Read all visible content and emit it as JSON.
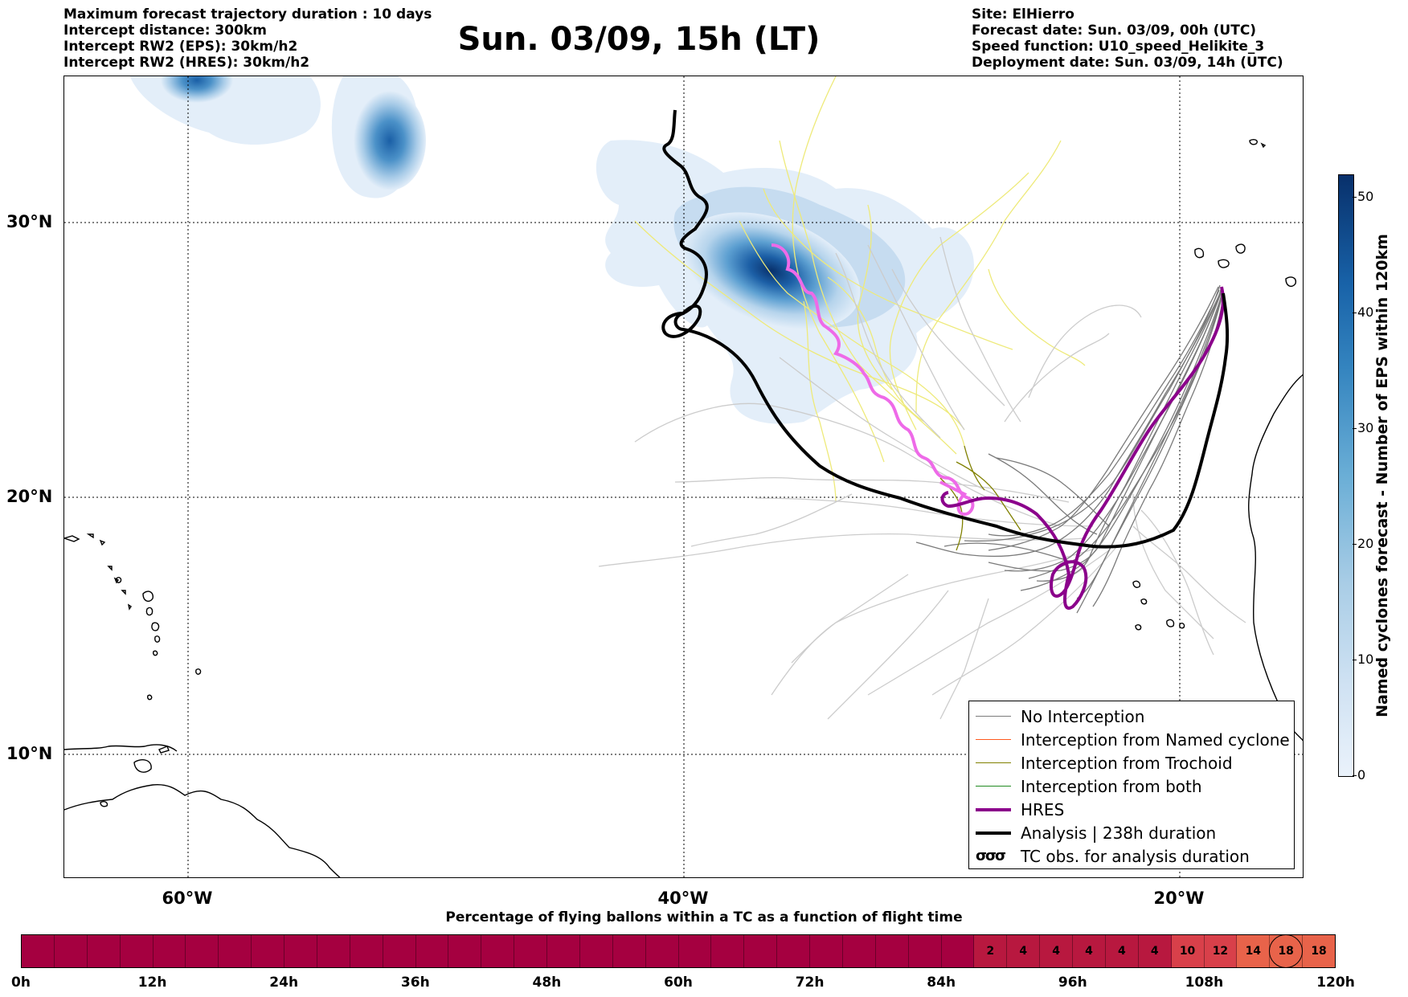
{
  "header": {
    "left": [
      "Maximum forecast trajectory duration : 10 days",
      "Intercept distance: 300km",
      "Intercept RW2 (EPS):  30km/h2",
      "Intercept RW2 (HRES): 30km/h2"
    ],
    "title": "Sun. 03/09, 15h (LT)",
    "right": [
      "Site: ElHierro",
      "Forecast date: Sun. 03/09, 00h (UTC)",
      "Speed function: U10_speed_Helikite_3",
      "Deployment date: Sun. 03/09, 14h (UTC)"
    ]
  },
  "map": {
    "lat_labels": [
      "30°N",
      "20°N",
      "10°N"
    ],
    "lon_labels": [
      "60°W",
      "40°W",
      "20°W"
    ],
    "colors": {
      "no_interception": "#7a7a7a",
      "light_tracks": "#c8c8c8",
      "named_cyclone": "#ff5a1f",
      "trochoid": "#808000",
      "both": "#228b22",
      "hres": "#8b008b",
      "analysis": "#000000",
      "tc_obs": "#ee6ae8",
      "yellow_tracks": "#f0ec80"
    }
  },
  "legend": [
    {
      "label": "No Interception",
      "style": "thin-gray"
    },
    {
      "label": "Interception from Named cyclone",
      "style": "thin-orange"
    },
    {
      "label": "Interception from Trochoid",
      "style": "thin-olive"
    },
    {
      "label": "Interception from both",
      "style": "thin-green"
    },
    {
      "label": "HRES",
      "style": "thick-purple"
    },
    {
      "label": "Analysis | 238h duration",
      "style": "thick-black"
    },
    {
      "label": "TC obs. for analysis duration",
      "style": "cyclone-symbol",
      "symbol": "σσσ"
    }
  ],
  "colorbar": {
    "label": "Named cyclones forecast - Number of EPS within 120km",
    "ticks": [
      "0",
      "10",
      "20",
      "30",
      "40",
      "50"
    ],
    "range": [
      0,
      52
    ]
  },
  "timebar": {
    "title": "Percentage of flying ballons within a TC as a function of flight time",
    "time_labels": [
      "0h",
      "12h",
      "24h",
      "36h",
      "48h",
      "60h",
      "72h",
      "84h",
      "96h",
      "108h",
      "120h"
    ],
    "cells": [
      "",
      "",
      "",
      "",
      "",
      "",
      "",
      "",
      "",
      "",
      "",
      "",
      "",
      "",
      "",
      "",
      "",
      "",
      "",
      "",
      "",
      "",
      "",
      "",
      "",
      "",
      "",
      "",
      "",
      "2",
      "4",
      "4",
      "4",
      "4",
      "4",
      "10",
      "12",
      "14",
      "18",
      "18"
    ],
    "circled_index": 38,
    "colors": {
      "base": "#a50040",
      "low": "#b8183f",
      "mid": "#d8404a",
      "high": "#e8634a"
    }
  }
}
